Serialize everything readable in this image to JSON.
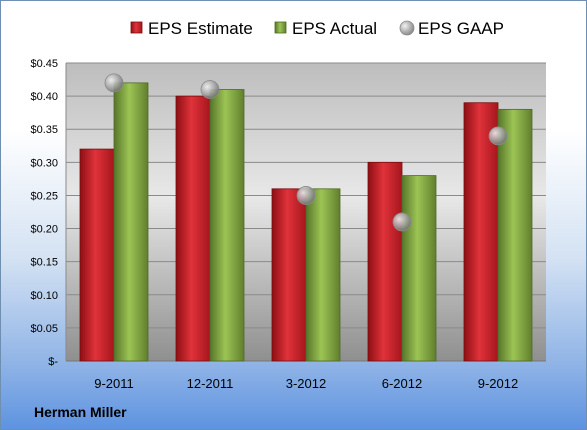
{
  "chart_data": {
    "type": "bar",
    "categories": [
      "9-2011",
      "12-2011",
      "3-2012",
      "6-2012",
      "9-2012"
    ],
    "series": [
      {
        "name": "EPS Estimate",
        "kind": "bar",
        "color": "#d0202a",
        "values": [
          0.32,
          0.4,
          0.26,
          0.3,
          0.39
        ]
      },
      {
        "name": "EPS Actual",
        "kind": "bar",
        "color": "#7fa83a",
        "values": [
          0.42,
          0.41,
          0.26,
          0.28,
          0.38
        ]
      },
      {
        "name": "EPS GAAP",
        "kind": "marker",
        "color": "#a0a0a0",
        "values": [
          0.42,
          0.41,
          0.25,
          0.21,
          0.34
        ]
      }
    ],
    "ylim": [
      0,
      0.45
    ],
    "yticks": [
      0,
      0.05,
      0.1,
      0.15,
      0.2,
      0.25,
      0.3,
      0.35,
      0.4,
      0.45
    ],
    "ytick_labels": [
      "$-",
      "$0.05",
      "$0.10",
      "$0.15",
      "$0.20",
      "$0.25",
      "$0.30",
      "$0.35",
      "$0.40",
      "$0.45"
    ],
    "grid": true,
    "legend_position": "top"
  },
  "company_label": "Herman Miller"
}
